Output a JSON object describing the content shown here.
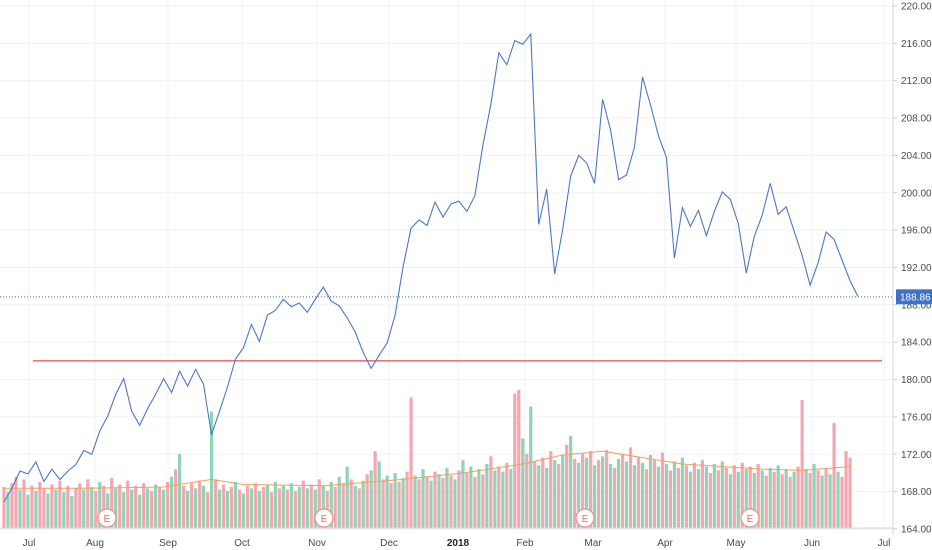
{
  "chart_data": {
    "type": "line",
    "price_axis": {
      "ticks": [
        "164.00",
        "168.00",
        "172.00",
        "176.00",
        "180.00",
        "184.00",
        "188.00",
        "192.00",
        "196.00",
        "200.00",
        "204.00",
        "208.00",
        "212.00",
        "216.00",
        "220.00"
      ],
      "range": [
        164,
        220
      ]
    },
    "time_axis": {
      "labels": [
        {
          "text": "Jul",
          "bold": false
        },
        {
          "text": "Aug",
          "bold": false
        },
        {
          "text": "Sep",
          "bold": false
        },
        {
          "text": "Oct",
          "bold": false
        },
        {
          "text": "Nov",
          "bold": false
        },
        {
          "text": "Dec",
          "bold": false
        },
        {
          "text": "2018",
          "bold": true
        },
        {
          "text": "Feb",
          "bold": false
        },
        {
          "text": "Mar",
          "bold": false
        },
        {
          "text": "Apr",
          "bold": false
        },
        {
          "text": "May",
          "bold": false
        },
        {
          "text": "Jun",
          "bold": false
        },
        {
          "text": "Jul",
          "bold": false
        }
      ]
    },
    "last_price": {
      "value": 188.86,
      "label": "188.86"
    },
    "horizontal_line": {
      "value": 182.0,
      "color": "#e84a4a"
    },
    "earnings_markers": [
      "E",
      "E",
      "E",
      "E"
    ],
    "price_series": [
      [
        0,
        166.9
      ],
      [
        2,
        168.4
      ],
      [
        4,
        170.2
      ],
      [
        6,
        169.9
      ],
      [
        8,
        171.2
      ],
      [
        10,
        169.1
      ],
      [
        12,
        170.4
      ],
      [
        14,
        169.3
      ],
      [
        16,
        170.2
      ],
      [
        18,
        170.9
      ],
      [
        20,
        172.4
      ],
      [
        22,
        172.0
      ],
      [
        24,
        174.5
      ],
      [
        26,
        176.1
      ],
      [
        28,
        178.4
      ],
      [
        30,
        180.1
      ],
      [
        32,
        176.6
      ],
      [
        34,
        175.1
      ],
      [
        36,
        176.9
      ],
      [
        38,
        178.4
      ],
      [
        40,
        180.1
      ],
      [
        42,
        178.6
      ],
      [
        44,
        180.9
      ],
      [
        46,
        179.3
      ],
      [
        48,
        181.1
      ],
      [
        50,
        179.5
      ],
      [
        52,
        174.1
      ],
      [
        54,
        176.6
      ],
      [
        56,
        179.2
      ],
      [
        58,
        182.2
      ],
      [
        60,
        183.4
      ],
      [
        62,
        185.9
      ],
      [
        64,
        184.1
      ],
      [
        66,
        186.9
      ],
      [
        68,
        187.4
      ],
      [
        70,
        188.6
      ],
      [
        72,
        187.8
      ],
      [
        74,
        188.2
      ],
      [
        76,
        187.2
      ],
      [
        78,
        188.6
      ],
      [
        80,
        189.9
      ],
      [
        82,
        188.4
      ],
      [
        84,
        187.9
      ],
      [
        86,
        186.6
      ],
      [
        88,
        185.1
      ],
      [
        90,
        182.9
      ],
      [
        92,
        181.2
      ],
      [
        94,
        182.6
      ],
      [
        96,
        183.9
      ],
      [
        98,
        186.9
      ],
      [
        100,
        192.1
      ],
      [
        102,
        196.2
      ],
      [
        104,
        197.1
      ],
      [
        106,
        196.5
      ],
      [
        108,
        199.0
      ],
      [
        110,
        197.4
      ],
      [
        112,
        198.8
      ],
      [
        114,
        199.1
      ],
      [
        116,
        198.0
      ],
      [
        118,
        199.7
      ],
      [
        120,
        205.1
      ],
      [
        122,
        209.5
      ],
      [
        124,
        215.0
      ],
      [
        126,
        213.7
      ],
      [
        128,
        216.3
      ],
      [
        130,
        215.9
      ],
      [
        132,
        217.0
      ],
      [
        134,
        196.6
      ],
      [
        136,
        200.4
      ],
      [
        138,
        191.3
      ],
      [
        140,
        196.1
      ],
      [
        142,
        201.8
      ],
      [
        144,
        204.0
      ],
      [
        146,
        203.2
      ],
      [
        148,
        201.0
      ],
      [
        150,
        210.0
      ],
      [
        152,
        206.7
      ],
      [
        154,
        201.4
      ],
      [
        156,
        201.9
      ],
      [
        158,
        204.9
      ],
      [
        160,
        212.4
      ],
      [
        162,
        209.4
      ],
      [
        164,
        206.1
      ],
      [
        166,
        203.8
      ],
      [
        168,
        193.0
      ],
      [
        170,
        198.4
      ],
      [
        172,
        196.4
      ],
      [
        174,
        198.1
      ],
      [
        176,
        195.4
      ],
      [
        178,
        198.0
      ],
      [
        180,
        200.1
      ],
      [
        182,
        199.3
      ],
      [
        184,
        196.7
      ],
      [
        186,
        191.4
      ],
      [
        188,
        195.3
      ],
      [
        190,
        197.6
      ],
      [
        192,
        201.0
      ],
      [
        194,
        197.7
      ],
      [
        196,
        198.5
      ],
      [
        198,
        195.9
      ],
      [
        200,
        193.3
      ],
      [
        202,
        190.1
      ],
      [
        204,
        192.5
      ],
      [
        206,
        195.8
      ],
      [
        208,
        195.0
      ],
      [
        210,
        192.8
      ],
      [
        212,
        190.6
      ],
      [
        214,
        188.9
      ]
    ],
    "volume_scale_max": 100,
    "volume_bars": [
      [
        0,
        32,
        0
      ],
      [
        1,
        28,
        1
      ],
      [
        2,
        35,
        0
      ],
      [
        3,
        40,
        0
      ],
      [
        4,
        30,
        1
      ],
      [
        5,
        38,
        0
      ],
      [
        6,
        26,
        1
      ],
      [
        7,
        33,
        0
      ],
      [
        8,
        29,
        1
      ],
      [
        9,
        36,
        0
      ],
      [
        10,
        31,
        0
      ],
      [
        11,
        27,
        1
      ],
      [
        12,
        34,
        0
      ],
      [
        13,
        30,
        1
      ],
      [
        14,
        37,
        0
      ],
      [
        15,
        28,
        1
      ],
      [
        16,
        33,
        0
      ],
      [
        17,
        25,
        1
      ],
      [
        18,
        31,
        0
      ],
      [
        19,
        35,
        0
      ],
      [
        20,
        30,
        1
      ],
      [
        21,
        38,
        0
      ],
      [
        22,
        32,
        1
      ],
      [
        23,
        29,
        0
      ],
      [
        24,
        36,
        1
      ],
      [
        25,
        33,
        0
      ],
      [
        26,
        27,
        1
      ],
      [
        27,
        39,
        0
      ],
      [
        28,
        31,
        1
      ],
      [
        29,
        34,
        0
      ],
      [
        30,
        28,
        1
      ],
      [
        31,
        37,
        0
      ],
      [
        32,
        30,
        1
      ],
      [
        33,
        33,
        0
      ],
      [
        34,
        26,
        1
      ],
      [
        35,
        35,
        0
      ],
      [
        36,
        31,
        1
      ],
      [
        37,
        29,
        0
      ],
      [
        38,
        34,
        1
      ],
      [
        39,
        32,
        0
      ],
      [
        40,
        30,
        1
      ],
      [
        41,
        36,
        0
      ],
      [
        42,
        40,
        1
      ],
      [
        43,
        46,
        0
      ],
      [
        44,
        58,
        1
      ],
      [
        45,
        33,
        0
      ],
      [
        46,
        29,
        1
      ],
      [
        47,
        35,
        0
      ],
      [
        48,
        31,
        1
      ],
      [
        49,
        37,
        0
      ],
      [
        50,
        33,
        1
      ],
      [
        51,
        28,
        0
      ],
      [
        52,
        91,
        1
      ],
      [
        53,
        38,
        0
      ],
      [
        54,
        30,
        1
      ],
      [
        55,
        34,
        0
      ],
      [
        56,
        29,
        1
      ],
      [
        57,
        32,
        0
      ],
      [
        58,
        36,
        1
      ],
      [
        59,
        30,
        0
      ],
      [
        60,
        27,
        1
      ],
      [
        61,
        33,
        0
      ],
      [
        62,
        31,
        1
      ],
      [
        63,
        35,
        0
      ],
      [
        64,
        29,
        1
      ],
      [
        65,
        32,
        0
      ],
      [
        66,
        34,
        1
      ],
      [
        67,
        28,
        0
      ],
      [
        68,
        36,
        1
      ],
      [
        69,
        31,
        0
      ],
      [
        70,
        33,
        1
      ],
      [
        71,
        30,
        0
      ],
      [
        72,
        35,
        1
      ],
      [
        73,
        29,
        0
      ],
      [
        74,
        32,
        1
      ],
      [
        75,
        37,
        0
      ],
      [
        76,
        31,
        1
      ],
      [
        77,
        34,
        0
      ],
      [
        78,
        30,
        1
      ],
      [
        79,
        38,
        0
      ],
      [
        80,
        33,
        1
      ],
      [
        81,
        29,
        0
      ],
      [
        82,
        36,
        1
      ],
      [
        83,
        32,
        0
      ],
      [
        84,
        40,
        1
      ],
      [
        85,
        35,
        0
      ],
      [
        86,
        48,
        1
      ],
      [
        87,
        38,
        0
      ],
      [
        88,
        33,
        1
      ],
      [
        89,
        31,
        0
      ],
      [
        90,
        37,
        1
      ],
      [
        91,
        42,
        0
      ],
      [
        92,
        45,
        1
      ],
      [
        93,
        60,
        0
      ],
      [
        94,
        52,
        1
      ],
      [
        95,
        38,
        0
      ],
      [
        96,
        41,
        1
      ],
      [
        97,
        35,
        0
      ],
      [
        98,
        43,
        1
      ],
      [
        99,
        36,
        0
      ],
      [
        100,
        39,
        1
      ],
      [
        101,
        44,
        0
      ],
      [
        102,
        102,
        0
      ],
      [
        103,
        41,
        1
      ],
      [
        104,
        38,
        0
      ],
      [
        105,
        46,
        1
      ],
      [
        106,
        40,
        0
      ],
      [
        107,
        37,
        1
      ],
      [
        108,
        44,
        0
      ],
      [
        109,
        42,
        1
      ],
      [
        110,
        39,
        0
      ],
      [
        111,
        47,
        1
      ],
      [
        112,
        41,
        0
      ],
      [
        113,
        38,
        1
      ],
      [
        114,
        45,
        0
      ],
      [
        115,
        53,
        1
      ],
      [
        116,
        43,
        0
      ],
      [
        117,
        48,
        1
      ],
      [
        118,
        40,
        0
      ],
      [
        119,
        46,
        1
      ],
      [
        120,
        42,
        0
      ],
      [
        121,
        50,
        1
      ],
      [
        122,
        56,
        0
      ],
      [
        123,
        45,
        1
      ],
      [
        124,
        48,
        0
      ],
      [
        125,
        44,
        1
      ],
      [
        126,
        51,
        0
      ],
      [
        127,
        46,
        1
      ],
      [
        128,
        105,
        0
      ],
      [
        129,
        108,
        0
      ],
      [
        130,
        70,
        1
      ],
      [
        131,
        58,
        0
      ],
      [
        132,
        95,
        1
      ],
      [
        133,
        52,
        0
      ],
      [
        134,
        49,
        1
      ],
      [
        135,
        55,
        0
      ],
      [
        136,
        47,
        1
      ],
      [
        137,
        60,
        0
      ],
      [
        138,
        53,
        1
      ],
      [
        139,
        50,
        0
      ],
      [
        140,
        57,
        1
      ],
      [
        141,
        65,
        0
      ],
      [
        142,
        72,
        1
      ],
      [
        143,
        54,
        0
      ],
      [
        144,
        51,
        1
      ],
      [
        145,
        58,
        0
      ],
      [
        146,
        55,
        1
      ],
      [
        147,
        60,
        0
      ],
      [
        148,
        49,
        1
      ],
      [
        149,
        53,
        0
      ],
      [
        150,
        56,
        1
      ],
      [
        151,
        61,
        0
      ],
      [
        152,
        50,
        1
      ],
      [
        153,
        47,
        0
      ],
      [
        154,
        54,
        1
      ],
      [
        155,
        58,
        0
      ],
      [
        156,
        52,
        1
      ],
      [
        157,
        63,
        0
      ],
      [
        158,
        49,
        1
      ],
      [
        159,
        55,
        0
      ],
      [
        160,
        51,
        1
      ],
      [
        161,
        46,
        0
      ],
      [
        162,
        57,
        1
      ],
      [
        163,
        53,
        0
      ],
      [
        164,
        48,
        1
      ],
      [
        165,
        59,
        0
      ],
      [
        166,
        50,
        1
      ],
      [
        167,
        45,
        0
      ],
      [
        168,
        52,
        1
      ],
      [
        169,
        47,
        0
      ],
      [
        170,
        55,
        1
      ],
      [
        171,
        49,
        0
      ],
      [
        172,
        44,
        1
      ],
      [
        173,
        51,
        0
      ],
      [
        174,
        46,
        1
      ],
      [
        175,
        53,
        0
      ],
      [
        176,
        48,
        1
      ],
      [
        177,
        43,
        0
      ],
      [
        178,
        50,
        1
      ],
      [
        179,
        45,
        0
      ],
      [
        180,
        52,
        1
      ],
      [
        181,
        47,
        0
      ],
      [
        182,
        42,
        1
      ],
      [
        183,
        49,
        0
      ],
      [
        184,
        44,
        1
      ],
      [
        185,
        51,
        0
      ],
      [
        186,
        46,
        1
      ],
      [
        187,
        48,
        0
      ],
      [
        188,
        43,
        1
      ],
      [
        189,
        50,
        0
      ],
      [
        190,
        45,
        1
      ],
      [
        191,
        41,
        0
      ],
      [
        192,
        47,
        1
      ],
      [
        193,
        44,
        0
      ],
      [
        194,
        49,
        1
      ],
      [
        195,
        42,
        0
      ],
      [
        196,
        46,
        1
      ],
      [
        197,
        40,
        0
      ],
      [
        198,
        44,
        1
      ],
      [
        199,
        48,
        0
      ],
      [
        200,
        100,
        0
      ],
      [
        201,
        46,
        1
      ],
      [
        202,
        43,
        0
      ],
      [
        203,
        50,
        1
      ],
      [
        204,
        45,
        0
      ],
      [
        205,
        41,
        1
      ],
      [
        206,
        47,
        0
      ],
      [
        207,
        42,
        1
      ],
      [
        208,
        82,
        0
      ],
      [
        209,
        44,
        1
      ],
      [
        210,
        40,
        0
      ],
      [
        211,
        60,
        0
      ],
      [
        212,
        55,
        0
      ]
    ],
    "volume_ma": [
      [
        0,
        31
      ],
      [
        20,
        31
      ],
      [
        40,
        32
      ],
      [
        52,
        38
      ],
      [
        60,
        34
      ],
      [
        80,
        33
      ],
      [
        100,
        38
      ],
      [
        115,
        43
      ],
      [
        130,
        50
      ],
      [
        140,
        57
      ],
      [
        150,
        60
      ],
      [
        160,
        55
      ],
      [
        170,
        50
      ],
      [
        180,
        48
      ],
      [
        190,
        46
      ],
      [
        200,
        45
      ],
      [
        212,
        48
      ]
    ],
    "colors": {
      "line": "#4a78c8",
      "volume_up": "#8fd4b4",
      "volume_down": "#f4a6b1",
      "volume_ma": "#f0a060",
      "last_price_bg": "#3d72c4",
      "grid": "#eef0f3",
      "marker": "#f28b82"
    }
  }
}
